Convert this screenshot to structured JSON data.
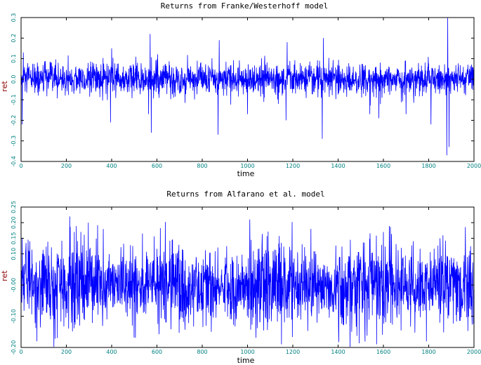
{
  "colors": {
    "series": "#0000ff",
    "tick_labels": "#008080",
    "ylabel": "#8b0000",
    "xlabel": "#000000",
    "frame": "#000000"
  },
  "chart_data": [
    {
      "type": "line",
      "title": "Returns from Franke/Westerhoff model",
      "xlabel": "time",
      "ylabel": "ret",
      "xlim": [
        0,
        2000
      ],
      "ylim": [
        -0.4,
        0.3
      ],
      "x_ticks": [
        0,
        200,
        400,
        600,
        800,
        1000,
        1200,
        1400,
        1600,
        1800,
        2000
      ],
      "x_tick_labels": [
        "0",
        "200",
        "400",
        "600",
        "800",
        "1000",
        "1200",
        "1400",
        "1600",
        "1800",
        "2000"
      ],
      "y_ticks": [
        -0.4,
        -0.3,
        -0.2,
        -0.1,
        0.0,
        0.1,
        0.2,
        0.3
      ],
      "y_tick_labels": [
        "-0.4",
        "-0.3",
        "-0.2",
        "-0.1",
        "0.0",
        "0.1",
        "0.2",
        "0.3"
      ],
      "grid": false,
      "series": [
        {
          "note_generation": "dense noise series; key visible extremes listed",
          "baseline_std": 0.04,
          "spikes": [
            {
              "x": 5,
              "y": -0.22
            },
            {
              "x": 10,
              "y": 0.13
            },
            {
              "x": 395,
              "y": -0.21
            },
            {
              "x": 400,
              "y": 0.15
            },
            {
              "x": 563,
              "y": -0.17
            },
            {
              "x": 570,
              "y": 0.22
            },
            {
              "x": 575,
              "y": -0.26
            },
            {
              "x": 870,
              "y": -0.27
            },
            {
              "x": 875,
              "y": 0.19
            },
            {
              "x": 1000,
              "y": -0.17
            },
            {
              "x": 1170,
              "y": -0.2
            },
            {
              "x": 1175,
              "y": 0.18
            },
            {
              "x": 1330,
              "y": -0.29
            },
            {
              "x": 1335,
              "y": 0.2
            },
            {
              "x": 1540,
              "y": -0.17
            },
            {
              "x": 1580,
              "y": -0.19
            },
            {
              "x": 1700,
              "y": -0.17
            },
            {
              "x": 1810,
              "y": -0.22
            },
            {
              "x": 1880,
              "y": -0.37
            },
            {
              "x": 1884,
              "y": 0.3
            },
            {
              "x": 1890,
              "y": -0.33
            }
          ]
        }
      ]
    },
    {
      "type": "line",
      "title": "Returns from Alfarano et al. model",
      "xlabel": "time",
      "ylabel": "ret",
      "xlim": [
        0,
        2000
      ],
      "ylim": [
        -0.2,
        0.25
      ],
      "x_ticks": [
        0,
        200,
        400,
        600,
        800,
        1000,
        1200,
        1400,
        1600,
        1800,
        2000
      ],
      "x_tick_labels": [
        "0",
        "200",
        "400",
        "600",
        "800",
        "1000",
        "1200",
        "1400",
        "1600",
        "1800",
        "2000"
      ],
      "y_ticks": [
        -0.2,
        -0.1,
        0.0,
        0.1,
        0.15,
        0.2,
        0.25
      ],
      "y_tick_labels": [
        "-0.20",
        "-0.10",
        "-0.00",
        "0.10",
        "0.15",
        "0.20",
        "0.25"
      ],
      "grid": false,
      "series": [
        {
          "note_generation": "dense noise series with volatility clusters; key visible extremes listed",
          "baseline_std": 0.05,
          "spikes": [
            {
              "x": 5,
              "y": 0.15
            },
            {
              "x": 70,
              "y": -0.18
            },
            {
              "x": 160,
              "y": -0.17
            },
            {
              "x": 215,
              "y": 0.22
            },
            {
              "x": 235,
              "y": 0.17
            },
            {
              "x": 840,
              "y": -0.15
            },
            {
              "x": 1150,
              "y": -0.19
            },
            {
              "x": 1280,
              "y": 0.18
            },
            {
              "x": 1460,
              "y": -0.15
            },
            {
              "x": 1570,
              "y": -0.19
            },
            {
              "x": 1600,
              "y": 0.17
            },
            {
              "x": 1790,
              "y": -0.18
            },
            {
              "x": 1850,
              "y": 0.15
            }
          ]
        }
      ]
    }
  ]
}
